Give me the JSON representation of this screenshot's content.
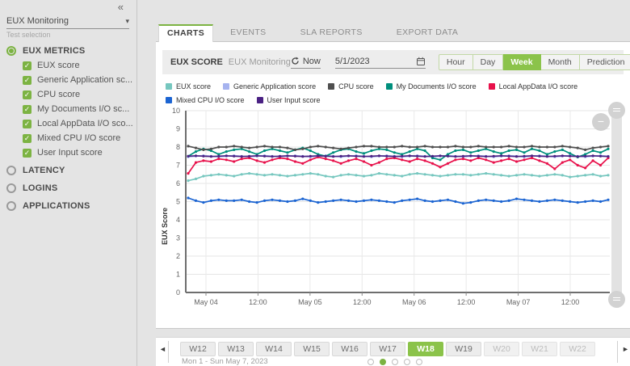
{
  "colors": {
    "accent_green": "#7cb342",
    "active_button_green": "#8bc34a"
  },
  "sidebar": {
    "collapse_icon": "«",
    "selector": {
      "value": "EUX Monitoring",
      "caption": "Test selection"
    },
    "groups": [
      {
        "label": "EUX METRICS",
        "selected": true,
        "metrics": [
          {
            "label": "EUX score",
            "checked": true
          },
          {
            "label": "Generic Application sc...",
            "checked": true
          },
          {
            "label": "CPU score",
            "checked": true
          },
          {
            "label": "My Documents I/O sc...",
            "checked": true
          },
          {
            "label": "Local AppData I/O sco...",
            "checked": true
          },
          {
            "label": "Mixed CPU I/O score",
            "checked": true
          },
          {
            "label": "User Input score",
            "checked": true
          }
        ]
      },
      {
        "label": "LATENCY",
        "selected": false,
        "metrics": []
      },
      {
        "label": "LOGINS",
        "selected": false,
        "metrics": []
      },
      {
        "label": "APPLICATIONS",
        "selected": false,
        "metrics": []
      }
    ]
  },
  "tabs": {
    "items": [
      "CHARTS",
      "EVENTS",
      "SLA REPORTS",
      "EXPORT DATA"
    ],
    "active": "CHARTS"
  },
  "header": {
    "title": "EUX SCORE",
    "subtitle": "EUX Monitoring",
    "refresh_label": "Now",
    "date_value": "5/1/2023",
    "ranges": [
      "Hour",
      "Day",
      "Week",
      "Month",
      "Prediction"
    ],
    "active_range": "Week"
  },
  "chart_data": {
    "type": "line",
    "title": "EUX SCORE",
    "ylabel": "EUX Score",
    "ylim": [
      0,
      10
    ],
    "yticks": [
      0,
      1,
      2,
      3,
      4,
      5,
      6,
      7,
      8,
      9,
      10
    ],
    "grid": true,
    "legend_position": "top",
    "xticklabels": [
      "May 04",
      "12:00",
      "May 05",
      "12:00",
      "May 06",
      "12:00",
      "May 07",
      "12:00"
    ],
    "series": [
      {
        "name": "EUX score",
        "color": "#76c7bf",
        "values": [
          6.15,
          6.25,
          6.4,
          6.45,
          6.5,
          6.45,
          6.4,
          6.5,
          6.55,
          6.5,
          6.45,
          6.5,
          6.45,
          6.4,
          6.45,
          6.5,
          6.55,
          6.5,
          6.4,
          6.35,
          6.45,
          6.5,
          6.45,
          6.4,
          6.45,
          6.55,
          6.5,
          6.45,
          6.4,
          6.5,
          6.55,
          6.5,
          6.45,
          6.4,
          6.45,
          6.5,
          6.5,
          6.45,
          6.5,
          6.55,
          6.5,
          6.45,
          6.4,
          6.45,
          6.5,
          6.45,
          6.4,
          6.45,
          6.5,
          6.45,
          6.35,
          6.4,
          6.45,
          6.5,
          6.4,
          6.45
        ]
      },
      {
        "name": "Generic Application score",
        "color": "#a6b3ef",
        "values": [
          7.46,
          7.5,
          7.53,
          7.5,
          7.46,
          7.5,
          7.53,
          7.5,
          7.46,
          7.5,
          7.53,
          7.5,
          7.46,
          7.5,
          7.53,
          7.5,
          7.46,
          7.5,
          7.53,
          7.5,
          7.46,
          7.5,
          7.53,
          7.5,
          7.46,
          7.5,
          7.53,
          7.5,
          7.46,
          7.5,
          7.53,
          7.5,
          7.46,
          7.5,
          7.53,
          7.5,
          7.46,
          7.5,
          7.53,
          7.5,
          7.46,
          7.5,
          7.53,
          7.5,
          7.46,
          7.5,
          7.53,
          7.5,
          7.46,
          7.5,
          7.53,
          7.5,
          7.46,
          7.5,
          7.53,
          7.5
        ]
      },
      {
        "name": "CPU score",
        "color": "#4f4f4f",
        "values": [
          8.05,
          7.95,
          7.85,
          7.9,
          8.0,
          8.0,
          8.05,
          8.0,
          7.95,
          8.0,
          8.05,
          8.0,
          8.0,
          7.95,
          7.85,
          7.9,
          8.0,
          8.05,
          8.0,
          7.95,
          7.9,
          7.95,
          8.0,
          8.05,
          8.05,
          8.0,
          8.0,
          8.0,
          8.05,
          8.0,
          8.0,
          8.05,
          8.0,
          8.0,
          8.0,
          8.05,
          8.0,
          8.0,
          8.05,
          8.0,
          8.0,
          8.0,
          8.05,
          8.0,
          8.0,
          8.05,
          8.0,
          8.0,
          8.0,
          8.05,
          8.0,
          7.95,
          7.85,
          7.95,
          8.0,
          8.05
        ]
      },
      {
        "name": "My Documents I/O score",
        "color": "#008f7d",
        "values": [
          7.5,
          7.75,
          7.9,
          7.8,
          7.6,
          7.75,
          7.85,
          7.9,
          7.75,
          7.6,
          7.8,
          7.9,
          7.8,
          7.7,
          7.85,
          7.95,
          7.8,
          7.6,
          7.5,
          7.7,
          7.85,
          7.9,
          7.75,
          7.65,
          7.8,
          7.9,
          7.85,
          7.7,
          7.6,
          7.75,
          7.9,
          7.8,
          7.4,
          7.3,
          7.6,
          7.8,
          7.85,
          7.7,
          7.8,
          7.9,
          7.75,
          7.65,
          7.8,
          7.85,
          7.7,
          7.9,
          7.8,
          7.6,
          7.75,
          7.85,
          7.65,
          7.45,
          7.6,
          7.8,
          7.7,
          7.9
        ]
      },
      {
        "name": "Local AppData I/O score",
        "color": "#e8114b",
        "values": [
          6.55,
          7.15,
          7.25,
          7.2,
          7.35,
          7.3,
          7.2,
          7.35,
          7.4,
          7.25,
          7.15,
          7.3,
          7.4,
          7.35,
          7.2,
          7.1,
          7.3,
          7.45,
          7.35,
          7.25,
          7.1,
          7.25,
          7.35,
          7.2,
          7.0,
          7.15,
          7.35,
          7.4,
          7.3,
          7.2,
          7.35,
          7.25,
          7.1,
          6.9,
          7.1,
          7.3,
          7.35,
          7.25,
          7.4,
          7.3,
          7.15,
          7.25,
          7.35,
          7.2,
          7.3,
          7.4,
          7.25,
          7.1,
          6.8,
          7.15,
          7.3,
          7.0,
          6.85,
          7.25,
          7.0,
          7.4
        ]
      },
      {
        "name": "Mixed CPU I/O score",
        "color": "#1b64d2",
        "values": [
          5.2,
          5.05,
          4.95,
          5.05,
          5.1,
          5.05,
          5.05,
          5.1,
          5.0,
          4.95,
          5.05,
          5.1,
          5.05,
          5.0,
          5.05,
          5.15,
          5.05,
          4.95,
          5.0,
          5.05,
          5.1,
          5.05,
          5.0,
          5.05,
          5.1,
          5.05,
          5.0,
          4.95,
          5.05,
          5.1,
          5.15,
          5.05,
          5.0,
          5.05,
          5.1,
          5.0,
          4.9,
          4.95,
          5.05,
          5.1,
          5.05,
          5.0,
          5.05,
          5.15,
          5.1,
          5.05,
          5.0,
          5.05,
          5.1,
          5.05,
          5.0,
          4.95,
          5.0,
          5.05,
          5.0,
          5.1
        ]
      },
      {
        "name": "User Input score",
        "color": "#4a2183",
        "values": [
          7.5,
          7.52,
          7.5,
          7.48,
          7.5,
          7.52,
          7.5,
          7.48,
          7.5,
          7.52,
          7.5,
          7.48,
          7.5,
          7.52,
          7.5,
          7.48,
          7.5,
          7.52,
          7.5,
          7.48,
          7.5,
          7.52,
          7.5,
          7.48,
          7.5,
          7.52,
          7.5,
          7.48,
          7.5,
          7.52,
          7.5,
          7.48,
          7.5,
          7.52,
          7.5,
          7.48,
          7.5,
          7.52,
          7.5,
          7.48,
          7.5,
          7.52,
          7.5,
          7.48,
          7.5,
          7.52,
          7.5,
          7.48,
          7.5,
          7.52,
          7.5,
          7.48,
          7.5,
          7.52,
          7.5,
          7.48
        ]
      }
    ]
  },
  "week_selector": {
    "prev_icon": "◄",
    "next_icon": "►",
    "weeks": [
      {
        "label": "W12",
        "state": "normal"
      },
      {
        "label": "W13",
        "state": "normal"
      },
      {
        "label": "W14",
        "state": "normal"
      },
      {
        "label": "W15",
        "state": "normal"
      },
      {
        "label": "W16",
        "state": "normal"
      },
      {
        "label": "W17",
        "state": "normal"
      },
      {
        "label": "W18",
        "state": "active"
      },
      {
        "label": "W19",
        "state": "normal"
      },
      {
        "label": "W20",
        "state": "disabled"
      },
      {
        "label": "W21",
        "state": "disabled"
      },
      {
        "label": "W22",
        "state": "disabled"
      }
    ],
    "range_label": "Mon 1 - Sun May 7, 2023",
    "page_dots": {
      "count": 5,
      "active_index": 1
    }
  }
}
